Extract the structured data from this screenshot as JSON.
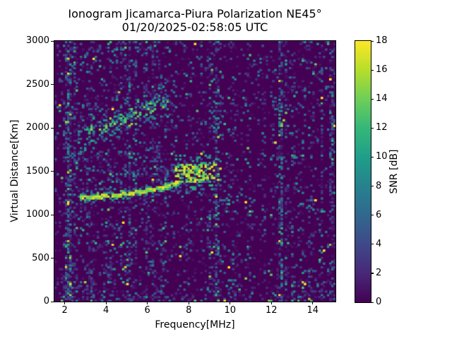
{
  "chart_data": {
    "type": "heatmap",
    "title": "Ionogram Jicamarca-Piura Polarization NE45°",
    "subtitle": "01/20/2025-02:58:05 UTC",
    "xlabel": "Frequency[MHz]",
    "ylabel": "Virtual Distance[Km]",
    "xlim": [
      1.5,
      15.1
    ],
    "ylim": [
      0,
      3000
    ],
    "xticks": [
      2,
      4,
      6,
      8,
      10,
      12,
      14
    ],
    "yticks": [
      0,
      500,
      1000,
      1500,
      2000,
      2500,
      3000
    ],
    "grid": false,
    "colorbar": {
      "label": "SNR [dB]",
      "min": 0,
      "max": 18,
      "ticks": [
        0,
        2,
        4,
        6,
        8,
        10,
        12,
        14,
        16,
        18
      ],
      "colormap": "viridis",
      "colormap_stops": [
        "#440154",
        "#482878",
        "#3e4989",
        "#31688e",
        "#26828e",
        "#1f9e89",
        "#35b779",
        "#6ece58",
        "#b5de2b",
        "#fde725"
      ]
    },
    "render": {
      "cols": 133,
      "rows": 140,
      "seed": 1337,
      "default_value_scale": 3.0
    },
    "noise": {
      "bands": [
        {
          "f0": 1.5,
          "f1": 2.1,
          "density": 0.13
        },
        {
          "f0": 2.1,
          "f1": 2.3,
          "density": 0.16
        },
        {
          "f0": 2.3,
          "f1": 7.35,
          "density": 0.19
        },
        {
          "f0": 7.35,
          "f1": 9.7,
          "density": 0.15
        },
        {
          "f0": 9.7,
          "f1": 12.35,
          "density": 0.12
        },
        {
          "f0": 12.35,
          "f1": 15.1,
          "density": 0.13
        }
      ],
      "height_mods": [
        {
          "h0": 0,
          "h1": 130,
          "add": 0.09
        },
        {
          "h0": 130,
          "h1": 260,
          "add": 0.06
        },
        {
          "h0": 2870,
          "h1": 3000,
          "add": 0.04
        }
      ],
      "patches": [
        {
          "f0": 1.8,
          "f1": 3.3,
          "h0": 40,
          "h1": 280,
          "add": 0.13,
          "scale": 2.2
        },
        {
          "f0": 2.3,
          "f1": 7.35,
          "h0": 1380,
          "h1": 1760,
          "add": 0.09,
          "scale": 2.2
        },
        {
          "f0": 6.2,
          "f1": 7.35,
          "h0": 2280,
          "h1": 2620,
          "add": 0.13,
          "scale": 3.2
        },
        {
          "f0": 11.8,
          "f1": 15.1,
          "h0": 0,
          "h1": 430,
          "add": 0.07,
          "scale": 3.0
        },
        {
          "f0": 12.4,
          "f1": 15.1,
          "h0": 1900,
          "h1": 2520,
          "add": 0.05,
          "scale": 2.2
        }
      ],
      "bottom_row": {
        "h_max": 25,
        "prob": 0.1,
        "snr": [
          12,
          18
        ]
      }
    },
    "interference_lines": [
      {
        "f": 2.15,
        "width": 0.28,
        "density": 0.38,
        "scale": 4.5
      },
      {
        "f": 2.52,
        "width": 0.1,
        "density": 0.2,
        "scale": 1.6
      },
      {
        "f": 5.08,
        "width": 0.16,
        "density": 0.3,
        "scale": 1.7
      },
      {
        "f": 5.45,
        "width": 0.12,
        "density": 0.25,
        "scale": 1.8
      },
      {
        "f": 5.95,
        "width": 0.1,
        "density": 0.18,
        "scale": 1.6
      },
      {
        "f": 6.25,
        "width": 0.1,
        "density": 0.2,
        "scale": 1.7
      },
      {
        "f": 6.9,
        "width": 0.12,
        "density": 0.22,
        "scale": 1.8
      },
      {
        "f": 9.05,
        "width": 0.12,
        "density": 0.22,
        "scale": 2.8
      },
      {
        "f": 9.35,
        "width": 0.16,
        "density": 0.3,
        "scale": 3.8
      },
      {
        "f": 12.45,
        "width": 0.16,
        "density": 0.34,
        "scale": 4.6
      },
      {
        "f": 12.72,
        "width": 0.1,
        "density": 0.26,
        "scale": 1.7
      },
      {
        "f": 13.1,
        "width": 0.1,
        "density": 0.16,
        "scale": 2.5
      },
      {
        "f": 14.45,
        "width": 0.12,
        "density": 0.2,
        "scale": 2.6
      },
      {
        "f": 14.95,
        "width": 0.25,
        "density": 0.22,
        "scale": 3.0
      }
    ],
    "features": {
      "main_trace": {
        "f0": 2.72,
        "f1": 7.38,
        "h_base": 1205,
        "curve": 7.5,
        "f_ref": 2.9,
        "core_km": 22,
        "core_p": 0.93,
        "core_snr": [
          13,
          18
        ],
        "edge_km": 46,
        "edge_p": 0.5,
        "edge_snr": [
          6,
          14
        ],
        "fringe_km": 70,
        "fringe_p": 0.14,
        "fringe_snr": [
          3,
          9
        ]
      },
      "spread_f_blob": {
        "f0": 7.35,
        "f1": 9.65,
        "h_center0": 1460,
        "slope": 25,
        "taper_f": 9.0,
        "core_km": 110,
        "core_p": 0.6,
        "core_snr": [
          9,
          18
        ],
        "halo_km": 240,
        "halo_p": 0.15,
        "halo_snr": [
          3,
          12
        ]
      },
      "second_hop": {
        "f0": 2.6,
        "f1": 7.15,
        "h_start": 1890,
        "h_end": 2340,
        "core_km": 70,
        "core_p": 0.34,
        "core_snr": [
          5,
          16
        ],
        "halo_km": 210,
        "halo_p": 0.11,
        "halo_snr": [
          3,
          10
        ]
      },
      "mid_scatter": {
        "f0": 4.2,
        "f1": 7.35,
        "h_start": 1425,
        "slope": 33,
        "spread_km": 55,
        "p": 0.13,
        "snr": [
          3,
          10
        ]
      }
    }
  }
}
